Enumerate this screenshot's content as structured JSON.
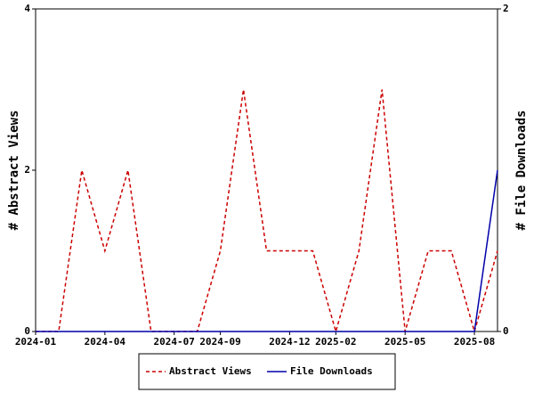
{
  "chart_data": {
    "type": "line",
    "categories": [
      "2024-01",
      null,
      null,
      "2024-04",
      null,
      null,
      "2024-07",
      null,
      "2024-09",
      null,
      null,
      "2024-12",
      null,
      "2025-02",
      null,
      null,
      "2025-05",
      null,
      null,
      "2025-08",
      null
    ],
    "series": [
      {
        "name": "Abstract Views",
        "color": "#cc0000",
        "line_style": "dashed",
        "axis": "y",
        "values": [
          0,
          0,
          2,
          1,
          2,
          0,
          0,
          0,
          1,
          3,
          1,
          1,
          1,
          0,
          1,
          3,
          0,
          1,
          1,
          0,
          1
        ]
      },
      {
        "name": "File Downloads",
        "color": "#0000aa",
        "line_style": "solid",
        "axis": "y2",
        "values": [
          0,
          0,
          0,
          0,
          0,
          0,
          0,
          0,
          0,
          0,
          0,
          0,
          0,
          0,
          0,
          0,
          0,
          0,
          0,
          0,
          1
        ]
      }
    ],
    "ylabel": "# Abstract Views",
    "y2label": "# File Downloads",
    "ylim": [
      0,
      4
    ],
    "yticks": [
      0,
      2,
      4
    ],
    "y2lim": [
      0,
      2
    ],
    "y2ticks": [
      0,
      2
    ],
    "legend": "bottom"
  }
}
